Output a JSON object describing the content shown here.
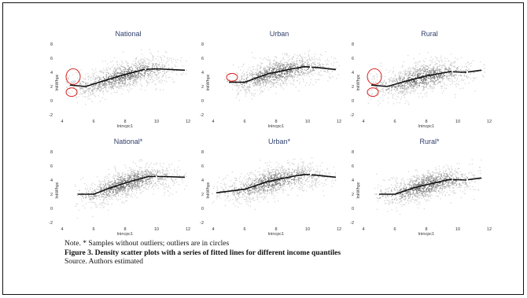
{
  "notes": {
    "note": "Note. * Samples without outliers; outliers are in circles",
    "caption": "Figure 3. Density scatter plots with a series of fitted lines for different income quantiles",
    "source": "Source. Authors estimated"
  },
  "colors": {
    "title": "#2f3f6b",
    "fit": "#111111",
    "outlier": "#d62020",
    "cloud": "#6e6e6e"
  },
  "chart_data": [
    {
      "type": "scatter",
      "title": "National",
      "xlabel": "lnincpc1",
      "ylabel": "lnkWhpc",
      "xlim": [
        4,
        12
      ],
      "ylim": [
        -2,
        8
      ],
      "xticks": [
        "4",
        "6",
        "8",
        "10",
        "12"
      ],
      "yticks": [
        "-2",
        "0",
        "2",
        "4",
        "6",
        "8"
      ],
      "fitted": [
        [
          4.5,
          2.2
        ],
        [
          5.5,
          2.0
        ],
        [
          6.8,
          2.9
        ],
        [
          8.0,
          3.7
        ],
        [
          9.2,
          4.4
        ],
        [
          10,
          4.5
        ],
        [
          11.8,
          4.3
        ]
      ],
      "gaps": [
        [
          9.25,
          9.35
        ]
      ],
      "outliers": [
        {
          "cx": 4.7,
          "cy": 3.4,
          "rx": 0.45,
          "ry": 1.1
        },
        {
          "cx": 4.6,
          "cy": 1.2,
          "rx": 0.35,
          "ry": 0.6
        }
      ]
    },
    {
      "type": "scatter",
      "title": "Urban",
      "xlabel": "lnincpc1",
      "ylabel": "lnkWhpc",
      "xlim": [
        4,
        12
      ],
      "ylim": [
        -2,
        8
      ],
      "xticks": [
        "4",
        "6",
        "8",
        "10",
        "12"
      ],
      "yticks": [
        "-2",
        "0",
        "2",
        "4",
        "6",
        "8"
      ],
      "fitted": [
        [
          5.0,
          2.6
        ],
        [
          6.0,
          2.6
        ],
        [
          7.5,
          3.8
        ],
        [
          9.0,
          4.5
        ],
        [
          9.8,
          4.8
        ],
        [
          10.5,
          4.7
        ],
        [
          11.8,
          4.4
        ]
      ],
      "gaps": [
        [
          10.15,
          10.25
        ]
      ],
      "outliers": [
        {
          "cx": 5.2,
          "cy": 3.3,
          "rx": 0.35,
          "ry": 0.55
        }
      ]
    },
    {
      "type": "scatter",
      "title": "Rural",
      "xlabel": "lnincpc1",
      "ylabel": "lnkWhpc",
      "xlim": [
        4,
        12
      ],
      "ylim": [
        -2,
        8
      ],
      "xticks": [
        "4",
        "6",
        "8",
        "10",
        "12"
      ],
      "yticks": [
        "-2",
        "0",
        "2",
        "4",
        "6",
        "8"
      ],
      "fitted": [
        [
          4.5,
          2.2
        ],
        [
          5.5,
          2.0
        ],
        [
          6.8,
          2.8
        ],
        [
          8.0,
          3.5
        ],
        [
          9.5,
          4.1
        ],
        [
          10.5,
          4.0
        ],
        [
          11.5,
          4.3
        ]
      ],
      "gaps": [
        [
          9.6,
          9.7
        ],
        [
          10.55,
          10.65
        ]
      ],
      "outliers": [
        {
          "cx": 4.7,
          "cy": 3.4,
          "rx": 0.45,
          "ry": 1.1
        },
        {
          "cx": 4.6,
          "cy": 1.2,
          "rx": 0.35,
          "ry": 0.6
        }
      ]
    },
    {
      "type": "scatter",
      "title": "National*",
      "xlabel": "lnincpc1",
      "ylabel": "lnkWhpc",
      "xlim": [
        4,
        12
      ],
      "ylim": [
        -2,
        8
      ],
      "xticks": [
        "4",
        "6",
        "8",
        "10",
        "12"
      ],
      "yticks": [
        "-2",
        "0",
        "2",
        "4",
        "6",
        "8"
      ],
      "fitted": [
        [
          5.0,
          2.0
        ],
        [
          6.0,
          2.0
        ],
        [
          7.2,
          3.0
        ],
        [
          8.5,
          3.9
        ],
        [
          9.5,
          4.5
        ],
        [
          10.5,
          4.5
        ],
        [
          11.8,
          4.4
        ]
      ],
      "gaps": [
        [
          9.95,
          10.05
        ]
      ],
      "outliers": []
    },
    {
      "type": "scatter",
      "title": "Urban*",
      "xlabel": "lnincpc1",
      "ylabel": "lnkWhpc",
      "xlim": [
        4,
        12
      ],
      "ylim": [
        -2,
        8
      ],
      "xticks": [
        "4",
        "6",
        "8",
        "10",
        "12"
      ],
      "yticks": [
        "-2",
        "0",
        "2",
        "4",
        "6",
        "8"
      ],
      "fitted": [
        [
          4.2,
          2.2
        ],
        [
          6.0,
          2.7
        ],
        [
          7.5,
          3.8
        ],
        [
          9.0,
          4.5
        ],
        [
          9.8,
          4.8
        ],
        [
          10.5,
          4.7
        ],
        [
          11.8,
          4.4
        ]
      ],
      "gaps": [
        [
          10.15,
          10.25
        ]
      ],
      "outliers": []
    },
    {
      "type": "scatter",
      "title": "Rural*",
      "xlabel": "lnincpc1",
      "ylabel": "lnkWhpc",
      "xlim": [
        4,
        12
      ],
      "ylim": [
        -2,
        8
      ],
      "xticks": [
        "4",
        "6",
        "8",
        "10",
        "12"
      ],
      "yticks": [
        "-2",
        "0",
        "2",
        "4",
        "6",
        "8"
      ],
      "fitted": [
        [
          5.0,
          2.0
        ],
        [
          6.0,
          2.0
        ],
        [
          7.2,
          2.9
        ],
        [
          8.5,
          3.6
        ],
        [
          9.5,
          4.1
        ],
        [
          10.5,
          4.0
        ],
        [
          11.5,
          4.3
        ]
      ],
      "gaps": [
        [
          9.6,
          9.7
        ],
        [
          10.55,
          10.65
        ]
      ],
      "outliers": []
    }
  ]
}
